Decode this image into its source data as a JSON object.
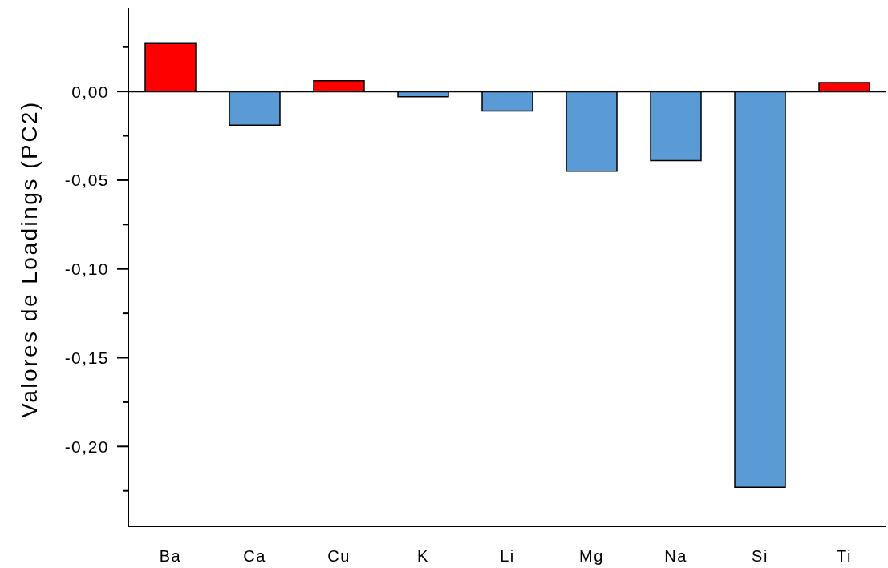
{
  "chart_data": {
    "type": "bar",
    "ylabel": "Valores de Loadings (PC2)",
    "categories": [
      "Ba",
      "Ca",
      "Cu",
      "K",
      "Li",
      "Mg",
      "Na",
      "Si",
      "Ti"
    ],
    "values": [
      0.027,
      -0.019,
      0.006,
      -0.003,
      -0.011,
      -0.045,
      -0.039,
      -0.223,
      0.005
    ],
    "colors": [
      "#ff0000",
      "#5b9bd5",
      "#ff0000",
      "#5b9bd5",
      "#5b9bd5",
      "#5b9bd5",
      "#5b9bd5",
      "#5b9bd5",
      "#ff0000"
    ],
    "ylim": [
      -0.245,
      0.047
    ],
    "yticks": [
      {
        "value": 0.025,
        "label": null
      },
      {
        "value": 0,
        "label": "0,00"
      },
      {
        "value": -0.025,
        "label": null
      },
      {
        "value": -0.05,
        "label": "-0,05"
      },
      {
        "value": -0.075,
        "label": null
      },
      {
        "value": -0.1,
        "label": "-0,10"
      },
      {
        "value": -0.125,
        "label": null
      },
      {
        "value": -0.15,
        "label": "-0,15"
      },
      {
        "value": -0.175,
        "label": null
      },
      {
        "value": -0.2,
        "label": "-0,20"
      },
      {
        "value": -0.225,
        "label": null
      }
    ],
    "ref_lines": [
      {
        "axis": "y",
        "value": 0,
        "color": "#000000"
      }
    ]
  }
}
